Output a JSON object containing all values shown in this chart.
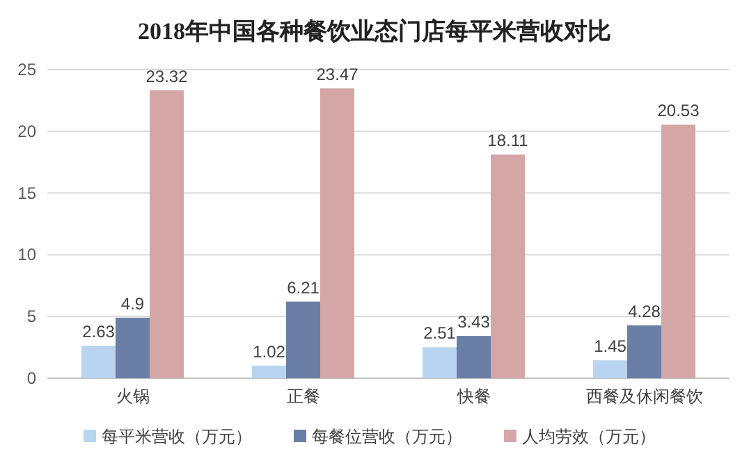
{
  "chart_data": {
    "type": "bar",
    "title": "2018年中国各种餐饮业态门店每平米营收对比",
    "categories": [
      "火锅",
      "正餐",
      "快餐",
      "西餐及休闲餐饮"
    ],
    "series": [
      {
        "name": "每平米营收（万元）",
        "color": "#b8d4f0",
        "values": [
          2.63,
          1.02,
          2.51,
          1.45
        ]
      },
      {
        "name": "每餐位营收（万元）",
        "color": "#6b7ea6",
        "values": [
          4.9,
          6.21,
          3.43,
          4.28
        ]
      },
      {
        "name": "人均劳效（万元）",
        "color": "#d5a6a6",
        "values": [
          23.32,
          23.47,
          18.11,
          20.53
        ]
      }
    ],
    "ylim": [
      0,
      25
    ],
    "yticks": [
      0,
      5,
      10,
      15,
      20,
      25
    ],
    "grid": "y",
    "legend": "bottom",
    "data_labels": true
  }
}
